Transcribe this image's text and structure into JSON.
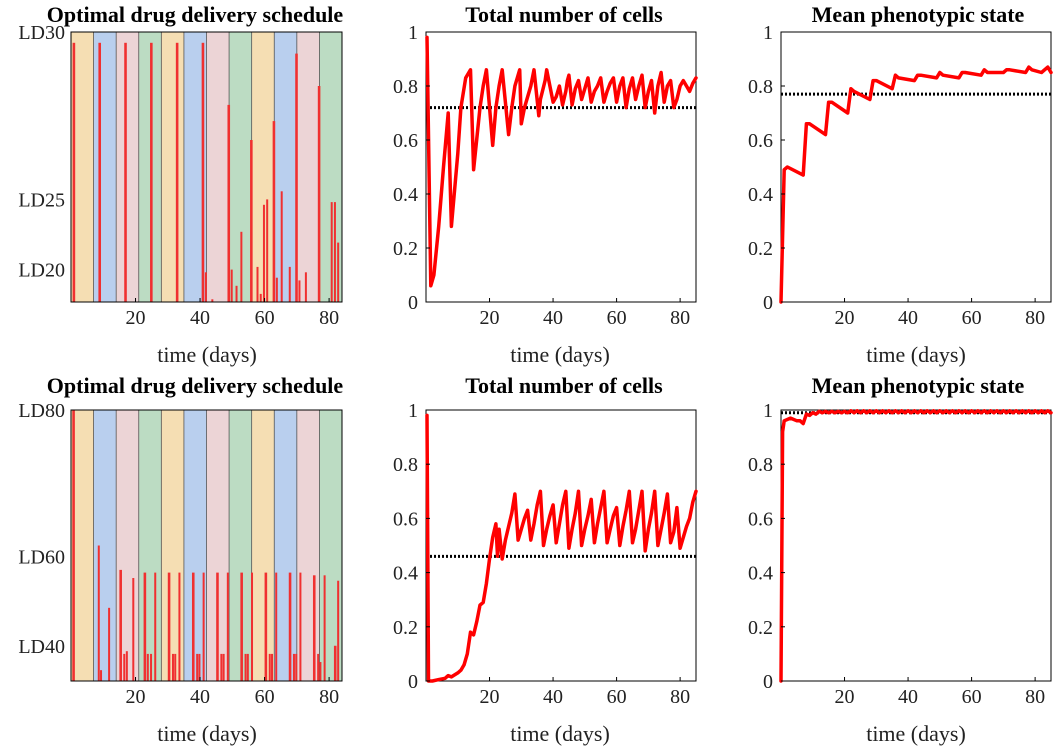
{
  "figure": {
    "panels": [
      {
        "kind": "schedule",
        "title": "Optimal drug delivery schedule",
        "xlabel": "time (days)"
      },
      {
        "kind": "line",
        "title": "Total number of cells",
        "xlabel": "time (days)"
      },
      {
        "kind": "line",
        "title": "Mean phenotypic state",
        "xlabel": "time (days)"
      },
      {
        "kind": "schedule",
        "title": "Optimal drug delivery schedule",
        "xlabel": "time (days)"
      },
      {
        "kind": "line",
        "title": "Total number of cells",
        "xlabel": "time (days)"
      },
      {
        "kind": "line",
        "title": "Mean phenotypic state",
        "xlabel": "time (days)"
      }
    ]
  },
  "colors": {
    "bands": [
      "#f5deb3",
      "#b9cfee",
      "#ecd4d6",
      "#bcdcc3"
    ],
    "line": "#ff0000",
    "bar": "#f03030",
    "reference": "#000000"
  },
  "chart_data": [
    {
      "type": "bar",
      "title": "Optimal drug delivery schedule",
      "xlabel": "time (days)",
      "xlim": [
        0,
        84
      ],
      "xticks": [
        20,
        40,
        60,
        80
      ],
      "ylim": [
        0,
        1
      ],
      "yticklabels": [
        {
          "label": "LD30",
          "at": 1.0
        },
        {
          "label": "LD25",
          "at": 0.38
        },
        {
          "label": "LD20",
          "at": 0.12
        }
      ],
      "bands": {
        "period": 7,
        "colors": [
          "#f5deb3",
          "#b9cfee",
          "#ecd4d6",
          "#bcdcc3"
        ]
      },
      "bars": [
        {
          "x": 0.5,
          "w": 0.8,
          "h": 0.96
        },
        {
          "x": 8.5,
          "w": 0.8,
          "h": 0.96
        },
        {
          "x": 16.5,
          "w": 0.8,
          "h": 0.96
        },
        {
          "x": 24.5,
          "w": 0.8,
          "h": 0.96
        },
        {
          "x": 32.5,
          "w": 0.8,
          "h": 0.96
        },
        {
          "x": 40.5,
          "w": 0.8,
          "h": 0.96
        },
        {
          "x": 41.5,
          "w": 0.5,
          "h": 0.11
        },
        {
          "x": 43.5,
          "w": 0.5,
          "h": 0.01
        },
        {
          "x": 48.5,
          "w": 0.8,
          "h": 0.73
        },
        {
          "x": 49.5,
          "w": 0.5,
          "h": 0.12
        },
        {
          "x": 51.0,
          "w": 0.5,
          "h": 0.06
        },
        {
          "x": 52.5,
          "w": 0.5,
          "h": 0.26
        },
        {
          "x": 55.5,
          "w": 0.8,
          "h": 0.6
        },
        {
          "x": 57.5,
          "w": 0.5,
          "h": 0.13
        },
        {
          "x": 58.5,
          "w": 0.5,
          "h": 0.03
        },
        {
          "x": 59.5,
          "w": 0.5,
          "h": 0.36
        },
        {
          "x": 60.5,
          "w": 0.5,
          "h": 0.38
        },
        {
          "x": 62.5,
          "w": 0.8,
          "h": 0.67
        },
        {
          "x": 63.5,
          "w": 0.5,
          "h": 0.09
        },
        {
          "x": 65.0,
          "w": 0.5,
          "h": 0.41
        },
        {
          "x": 67.5,
          "w": 0.5,
          "h": 0.13
        },
        {
          "x": 69.5,
          "w": 0.8,
          "h": 0.92
        },
        {
          "x": 70.5,
          "w": 0.5,
          "h": 0.08
        },
        {
          "x": 72.5,
          "w": 0.5,
          "h": 0.11
        },
        {
          "x": 76.5,
          "w": 0.8,
          "h": 0.8
        },
        {
          "x": 80.5,
          "w": 0.5,
          "h": 0.37
        },
        {
          "x": 81.5,
          "w": 0.5,
          "h": 0.37
        },
        {
          "x": 82.5,
          "w": 0.5,
          "h": 0.22
        }
      ]
    },
    {
      "type": "line",
      "title": "Total number of cells",
      "xlabel": "time (days)",
      "xlim": [
        0,
        85
      ],
      "ylim": [
        0,
        1
      ],
      "xticks": [
        20,
        40,
        60,
        80
      ],
      "yticks": [
        0,
        0.2,
        0.4,
        0.6,
        0.8,
        1
      ],
      "reference": 0.72,
      "series": [
        {
          "x": [
            0.3,
            1.5,
            2.5,
            4,
            5.5,
            7,
            8,
            10,
            11,
            12.5,
            14,
            15,
            17,
            18,
            19,
            21,
            22,
            23,
            24,
            26,
            27,
            28,
            29.5,
            30,
            31,
            33,
            34,
            35.5,
            36,
            37.5,
            38,
            40,
            41,
            42,
            43,
            44,
            44.5,
            45,
            46,
            47,
            48,
            49,
            50,
            51,
            52,
            53,
            54,
            55,
            56,
            57,
            58,
            59,
            60,
            61,
            62,
            63,
            64,
            65,
            66,
            67,
            68,
            69,
            70,
            71,
            72,
            73,
            74,
            75,
            76,
            77,
            78,
            79,
            80,
            81,
            82,
            83,
            84,
            85
          ],
          "y": [
            0.98,
            0.06,
            0.1,
            0.28,
            0.5,
            0.7,
            0.28,
            0.55,
            0.72,
            0.83,
            0.86,
            0.49,
            0.72,
            0.8,
            0.86,
            0.58,
            0.72,
            0.8,
            0.86,
            0.62,
            0.72,
            0.8,
            0.86,
            0.66,
            0.72,
            0.8,
            0.86,
            0.69,
            0.75,
            0.82,
            0.86,
            0.74,
            0.76,
            0.8,
            0.73,
            0.78,
            0.82,
            0.84,
            0.73,
            0.79,
            0.82,
            0.75,
            0.79,
            0.83,
            0.74,
            0.78,
            0.8,
            0.83,
            0.74,
            0.78,
            0.81,
            0.83,
            0.74,
            0.8,
            0.83,
            0.72,
            0.79,
            0.83,
            0.75,
            0.8,
            0.84,
            0.72,
            0.78,
            0.82,
            0.7,
            0.8,
            0.85,
            0.74,
            0.8,
            0.82,
            0.72,
            0.75,
            0.8,
            0.82,
            0.8,
            0.78,
            0.81,
            0.83
          ]
        }
      ]
    },
    {
      "type": "line",
      "title": "Mean phenotypic state",
      "xlabel": "time (days)",
      "xlim": [
        0,
        85
      ],
      "ylim": [
        0,
        1
      ],
      "xticks": [
        20,
        40,
        60,
        80
      ],
      "yticks": [
        0,
        0.2,
        0.4,
        0.6,
        0.8,
        1
      ],
      "reference": 0.77,
      "series": [
        {
          "x": [
            0,
            1,
            2,
            7,
            8,
            9,
            14,
            15,
            16,
            21,
            22,
            23,
            28,
            29,
            30,
            35,
            36,
            37,
            42,
            43,
            44,
            49,
            50,
            51,
            56,
            57,
            58,
            63,
            64,
            65,
            70,
            71,
            72,
            77,
            78,
            79,
            82,
            84,
            85
          ],
          "y": [
            0,
            0.49,
            0.5,
            0.47,
            0.66,
            0.66,
            0.62,
            0.74,
            0.74,
            0.7,
            0.79,
            0.78,
            0.75,
            0.82,
            0.82,
            0.79,
            0.84,
            0.83,
            0.82,
            0.84,
            0.84,
            0.83,
            0.85,
            0.84,
            0.83,
            0.85,
            0.85,
            0.84,
            0.86,
            0.85,
            0.85,
            0.86,
            0.86,
            0.85,
            0.87,
            0.86,
            0.85,
            0.87,
            0.85
          ]
        }
      ]
    },
    {
      "type": "bar",
      "title": "Optimal drug delivery schedule",
      "xlabel": "time (days)",
      "xlim": [
        0,
        84
      ],
      "xticks": [
        20,
        40,
        60,
        80
      ],
      "ylim": [
        0,
        1
      ],
      "yticklabels": [
        {
          "label": "LD80",
          "at": 1.0
        },
        {
          "label": "LD60",
          "at": 0.46
        },
        {
          "label": "LD40",
          "at": 0.13
        }
      ],
      "bands": {
        "period": 7,
        "colors": [
          "#f5deb3",
          "#b9cfee",
          "#ecd4d6",
          "#bcdcc3"
        ]
      },
      "bars": [
        {
          "x": 0.4,
          "w": 0.8,
          "h": 1.0
        },
        {
          "x": 8.3,
          "w": 0.6,
          "h": 0.5
        },
        {
          "x": 9.0,
          "w": 0.6,
          "h": 0.04
        },
        {
          "x": 11.5,
          "w": 0.5,
          "h": 0.27
        },
        {
          "x": 15.0,
          "w": 0.8,
          "h": 0.41
        },
        {
          "x": 16.2,
          "w": 0.6,
          "h": 0.1
        },
        {
          "x": 17.0,
          "w": 0.6,
          "h": 0.11
        },
        {
          "x": 19.0,
          "w": 0.5,
          "h": 0.38
        },
        {
          "x": 22.5,
          "w": 0.8,
          "h": 0.4
        },
        {
          "x": 23.5,
          "w": 0.6,
          "h": 0.1
        },
        {
          "x": 24.5,
          "w": 0.6,
          "h": 0.1
        },
        {
          "x": 25.8,
          "w": 0.5,
          "h": 0.4
        },
        {
          "x": 30.0,
          "w": 0.8,
          "h": 0.4
        },
        {
          "x": 31.3,
          "w": 0.6,
          "h": 0.1
        },
        {
          "x": 32.0,
          "w": 0.6,
          "h": 0.1
        },
        {
          "x": 33.3,
          "w": 0.5,
          "h": 0.4
        },
        {
          "x": 37.5,
          "w": 0.8,
          "h": 0.4
        },
        {
          "x": 38.8,
          "w": 0.6,
          "h": 0.1
        },
        {
          "x": 39.5,
          "w": 0.6,
          "h": 0.1
        },
        {
          "x": 40.8,
          "w": 0.5,
          "h": 0.4
        },
        {
          "x": 45.0,
          "w": 0.8,
          "h": 0.4
        },
        {
          "x": 46.3,
          "w": 0.6,
          "h": 0.1
        },
        {
          "x": 47.0,
          "w": 0.6,
          "h": 0.1
        },
        {
          "x": 48.3,
          "w": 0.5,
          "h": 0.4
        },
        {
          "x": 52.5,
          "w": 0.8,
          "h": 0.4
        },
        {
          "x": 53.8,
          "w": 0.6,
          "h": 0.1
        },
        {
          "x": 54.5,
          "w": 0.6,
          "h": 0.1
        },
        {
          "x": 55.8,
          "w": 0.5,
          "h": 0.4
        },
        {
          "x": 60.0,
          "w": 0.8,
          "h": 0.4
        },
        {
          "x": 61.3,
          "w": 0.6,
          "h": 0.1
        },
        {
          "x": 62.0,
          "w": 0.6,
          "h": 0.1
        },
        {
          "x": 63.3,
          "w": 0.5,
          "h": 0.4
        },
        {
          "x": 67.5,
          "w": 0.8,
          "h": 0.4
        },
        {
          "x": 68.8,
          "w": 0.6,
          "h": 0.1
        },
        {
          "x": 69.5,
          "w": 0.6,
          "h": 0.1
        },
        {
          "x": 70.8,
          "w": 0.5,
          "h": 0.4
        },
        {
          "x": 75.0,
          "w": 0.8,
          "h": 0.39
        },
        {
          "x": 76.3,
          "w": 0.6,
          "h": 0.1
        },
        {
          "x": 77.0,
          "w": 0.6,
          "h": 0.07
        },
        {
          "x": 78.3,
          "w": 0.5,
          "h": 0.39
        },
        {
          "x": 81.5,
          "w": 0.8,
          "h": 0.13
        },
        {
          "x": 82.5,
          "w": 0.6,
          "h": 0.37
        }
      ]
    },
    {
      "type": "line",
      "title": "Total number of cells",
      "xlabel": "time (days)",
      "xlim": [
        0,
        85
      ],
      "ylim": [
        0,
        1
      ],
      "xticks": [
        20,
        40,
        60,
        80
      ],
      "yticks": [
        0,
        0.2,
        0.4,
        0.6,
        0.8,
        1
      ],
      "reference": 0.46,
      "series": [
        {
          "x": [
            0.3,
            0.8,
            2,
            4,
            6,
            7,
            8,
            10,
            11,
            12,
            13,
            14,
            15,
            16,
            17,
            18,
            19,
            20,
            21,
            22,
            22.5,
            23,
            24,
            25,
            26,
            27,
            28,
            29,
            30,
            31,
            32,
            33,
            34,
            35,
            36,
            37,
            38,
            39,
            40,
            41,
            42,
            43,
            44,
            45,
            46,
            47,
            48,
            49,
            50,
            51,
            52,
            53,
            54,
            55,
            56,
            57,
            58,
            59,
            60,
            61,
            62,
            63,
            64,
            65,
            66,
            67,
            68,
            69,
            70,
            71,
            72,
            73,
            74,
            75,
            76,
            77,
            78,
            79,
            80,
            81,
            82,
            83,
            84,
            85
          ],
          "y": [
            0.98,
            0,
            0,
            0.005,
            0.01,
            0.02,
            0.015,
            0.03,
            0.04,
            0.06,
            0.1,
            0.18,
            0.17,
            0.22,
            0.28,
            0.29,
            0.36,
            0.45,
            0.53,
            0.58,
            0.46,
            0.56,
            0.45,
            0.52,
            0.57,
            0.62,
            0.69,
            0.52,
            0.56,
            0.6,
            0.63,
            0.52,
            0.58,
            0.65,
            0.7,
            0.5,
            0.56,
            0.61,
            0.65,
            0.51,
            0.58,
            0.65,
            0.7,
            0.49,
            0.56,
            0.62,
            0.7,
            0.5,
            0.56,
            0.61,
            0.67,
            0.51,
            0.58,
            0.64,
            0.7,
            0.51,
            0.56,
            0.61,
            0.64,
            0.5,
            0.57,
            0.63,
            0.7,
            0.51,
            0.56,
            0.63,
            0.7,
            0.48,
            0.56,
            0.62,
            0.7,
            0.5,
            0.56,
            0.62,
            0.69,
            0.51,
            0.55,
            0.64,
            0.49,
            0.53,
            0.57,
            0.6,
            0.66,
            0.7
          ]
        }
      ]
    },
    {
      "type": "line",
      "title": "Mean phenotypic state",
      "xlabel": "time (days)",
      "xlim": [
        0,
        85
      ],
      "ylim": [
        0,
        1
      ],
      "xticks": [
        20,
        40,
        60,
        80
      ],
      "yticks": [
        0,
        0.2,
        0.4,
        0.6,
        0.8,
        1
      ],
      "reference": 0.99,
      "series": [
        {
          "x": [
            0,
            0.5,
            1,
            3,
            5,
            6,
            7,
            8,
            9,
            10,
            11,
            12,
            13,
            14,
            15,
            16,
            17,
            18,
            19,
            20,
            21,
            22,
            23,
            24,
            25,
            26,
            27,
            28,
            29,
            30,
            31,
            32,
            33,
            34,
            35,
            36,
            37,
            38,
            39,
            40,
            41,
            42,
            43,
            44,
            45,
            46,
            47,
            48,
            49,
            50,
            51,
            52,
            53,
            54,
            55,
            56,
            57,
            58,
            59,
            60,
            61,
            62,
            63,
            64,
            65,
            66,
            67,
            68,
            69,
            70,
            71,
            72,
            73,
            74,
            75,
            76,
            77,
            78,
            79,
            80,
            81,
            82,
            83,
            84,
            85
          ],
          "y": [
            0,
            0.92,
            0.96,
            0.97,
            0.96,
            0.96,
            0.95,
            0.985,
            0.98,
            0.99,
            0.985,
            0.995,
            0.99,
            0.995,
            0.99,
            0.995,
            0.99,
            0.995,
            0.99,
            0.995,
            0.99,
            0.997,
            0.99,
            0.997,
            0.99,
            0.997,
            0.99,
            0.997,
            0.99,
            0.997,
            0.99,
            0.997,
            0.99,
            0.997,
            0.99,
            0.997,
            0.99,
            0.997,
            0.99,
            0.997,
            0.99,
            0.997,
            0.99,
            0.997,
            0.99,
            0.997,
            0.99,
            0.997,
            0.99,
            0.997,
            0.99,
            0.997,
            0.99,
            0.997,
            0.99,
            0.997,
            0.99,
            0.997,
            0.99,
            0.997,
            0.99,
            0.997,
            0.99,
            0.997,
            0.99,
            0.997,
            0.99,
            0.997,
            0.99,
            0.997,
            0.99,
            0.997,
            0.99,
            0.997,
            0.99,
            0.997,
            0.99,
            0.997,
            0.99,
            0.997,
            0.99,
            0.997,
            0.99,
            0.997,
            0.99
          ]
        }
      ]
    }
  ]
}
